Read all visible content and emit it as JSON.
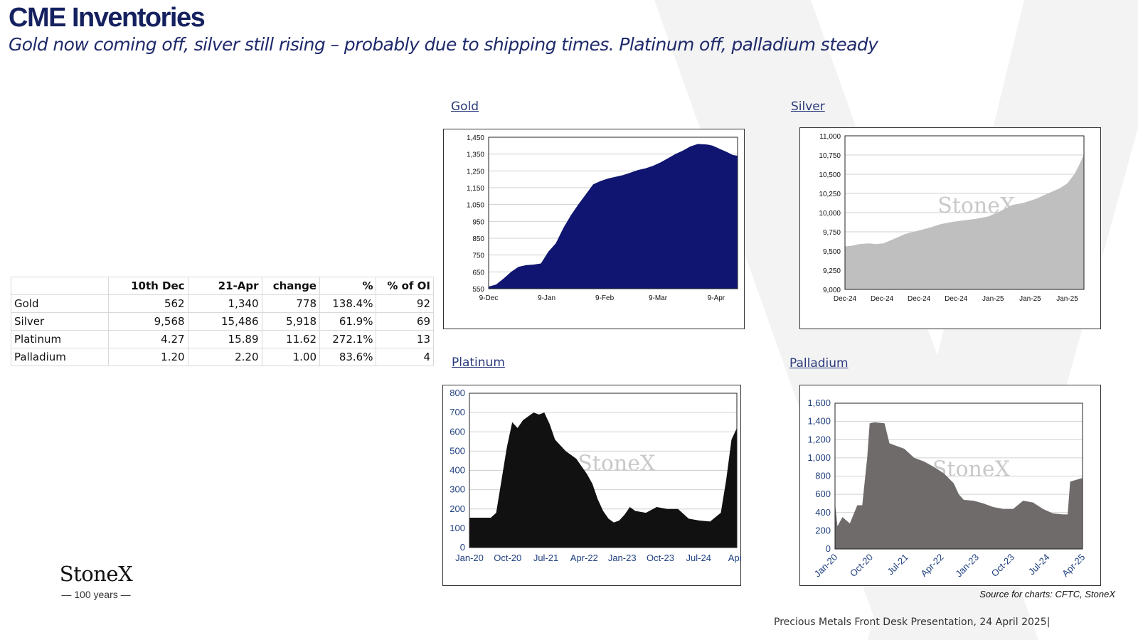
{
  "header": {
    "title": "CME Inventories",
    "subtitle": "Gold now coming off, silver still rising – probably due to shipping times.  Platinum off, palladium steady"
  },
  "table": {
    "headers": [
      "",
      "10th Dec",
      "21-Apr",
      "change",
      "%",
      "% of OI"
    ],
    "rows": [
      [
        "Gold",
        "562",
        "1,340",
        "778",
        "138.4%",
        "92"
      ],
      [
        "Silver",
        "9,568",
        "15,486",
        "5,918",
        "61.9%",
        "69"
      ],
      [
        "Platinum",
        "4.27",
        "15.89",
        "11.62",
        "272.1%",
        "13"
      ],
      [
        "Palladium",
        "1.20",
        "2.20",
        "1.00",
        "83.6%",
        "4"
      ]
    ]
  },
  "charts_labels": {
    "gold": "Gold",
    "silver": "Silver",
    "platinum": "Platinum",
    "palladium": "Palladium"
  },
  "chart_data": [
    {
      "type": "area",
      "title": "Gold",
      "fill": "#0f1570",
      "ylim": [
        550,
        1450
      ],
      "yticks": [
        550,
        650,
        750,
        850,
        950,
        1050,
        1150,
        1250,
        1350,
        1450
      ],
      "xticks": [
        "9-Dec",
        "9-Jan",
        "9-Feb",
        "9-Mar",
        "9-Apr"
      ],
      "xtick_at": [
        0,
        0.233,
        0.466,
        0.68,
        0.914
      ],
      "watermark": "StoneX",
      "x": [
        0,
        0.03,
        0.06,
        0.09,
        0.12,
        0.15,
        0.18,
        0.21,
        0.24,
        0.27,
        0.3,
        0.33,
        0.36,
        0.39,
        0.42,
        0.45,
        0.48,
        0.51,
        0.54,
        0.57,
        0.6,
        0.63,
        0.66,
        0.69,
        0.72,
        0.75,
        0.78,
        0.81,
        0.84,
        0.87,
        0.885,
        0.9,
        0.93,
        0.96,
        0.98,
        1.0
      ],
      "values": [
        562,
        575,
        610,
        650,
        680,
        690,
        693,
        700,
        770,
        820,
        910,
        985,
        1050,
        1110,
        1170,
        1190,
        1205,
        1215,
        1225,
        1240,
        1255,
        1265,
        1280,
        1300,
        1325,
        1350,
        1370,
        1395,
        1410,
        1408,
        1405,
        1400,
        1380,
        1360,
        1345,
        1340
      ]
    },
    {
      "type": "area",
      "title": "Silver",
      "fill": "#bfbfbf",
      "ylim": [
        9000,
        11000
      ],
      "yticks": [
        9000,
        9250,
        9500,
        9750,
        10000,
        10250,
        10500,
        10750,
        11000
      ],
      "xticks": [
        "Dec-24",
        "Dec-24",
        "Dec-24",
        "Dec-24",
        "Jan-25",
        "Jan-25",
        "Jan-25"
      ],
      "xtick_at": [
        0,
        0.155,
        0.31,
        0.465,
        0.62,
        0.775,
        0.93
      ],
      "watermark": "StoneX",
      "x": [
        0,
        0.03,
        0.06,
        0.1,
        0.13,
        0.16,
        0.2,
        0.25,
        0.3,
        0.35,
        0.4,
        0.45,
        0.5,
        0.55,
        0.6,
        0.65,
        0.7,
        0.75,
        0.8,
        0.85,
        0.9,
        0.93,
        0.96,
        0.98,
        1.0
      ],
      "values": [
        9560,
        9570,
        9590,
        9600,
        9590,
        9600,
        9650,
        9720,
        9760,
        9800,
        9850,
        9880,
        9900,
        9920,
        9950,
        10020,
        10100,
        10130,
        10180,
        10250,
        10320,
        10380,
        10500,
        10620,
        10760
      ]
    },
    {
      "type": "area",
      "title": "Platinum",
      "fill": "#111111",
      "ylim": [
        0,
        800
      ],
      "yticks": [
        0,
        100,
        200,
        300,
        400,
        500,
        600,
        700,
        800
      ],
      "xticks": [
        "Jan-20",
        "Oct-20",
        "Jul-21",
        "Apr-22",
        "Jan-23",
        "Oct-23",
        "Jul-24",
        "Apr-"
      ],
      "xtick_at": [
        0,
        0.143,
        0.286,
        0.429,
        0.571,
        0.714,
        0.857,
        1.0
      ],
      "watermark": "StoneX",
      "x": [
        0,
        0.04,
        0.08,
        0.1,
        0.12,
        0.14,
        0.16,
        0.18,
        0.2,
        0.22,
        0.24,
        0.26,
        0.28,
        0.3,
        0.32,
        0.34,
        0.36,
        0.38,
        0.4,
        0.42,
        0.44,
        0.46,
        0.48,
        0.5,
        0.52,
        0.54,
        0.56,
        0.58,
        0.6,
        0.62,
        0.66,
        0.7,
        0.74,
        0.78,
        0.82,
        0.86,
        0.9,
        0.94,
        0.96,
        0.98,
        1.0
      ],
      "values": [
        155,
        155,
        155,
        180,
        350,
        520,
        650,
        620,
        660,
        680,
        700,
        690,
        700,
        640,
        560,
        530,
        500,
        480,
        460,
        420,
        380,
        330,
        250,
        190,
        150,
        130,
        140,
        170,
        210,
        190,
        180,
        210,
        200,
        200,
        150,
        140,
        135,
        180,
        350,
        560,
        620
      ]
    },
    {
      "type": "area",
      "title": "Palladium",
      "fill": "#706b6b",
      "ylim": [
        0,
        1600
      ],
      "yticks": [
        0,
        200,
        400,
        600,
        800,
        1000,
        1200,
        1400,
        1600
      ],
      "xticks": [
        "Jan-20",
        "Oct-20",
        "Jul-21",
        "Apr-22",
        "Jan-23",
        "Oct-23",
        "Jul-24",
        "Apr-25"
      ],
      "xtick_at": [
        0,
        0.143,
        0.286,
        0.429,
        0.571,
        0.714,
        0.857,
        1.0
      ],
      "watermark": "StoneX",
      "x": [
        0,
        0.01,
        0.03,
        0.06,
        0.09,
        0.11,
        0.13,
        0.14,
        0.16,
        0.2,
        0.22,
        0.24,
        0.28,
        0.32,
        0.36,
        0.4,
        0.44,
        0.48,
        0.5,
        0.52,
        0.56,
        0.6,
        0.64,
        0.68,
        0.72,
        0.76,
        0.8,
        0.84,
        0.88,
        0.92,
        0.94,
        0.95,
        1.0
      ],
      "values": [
        500,
        250,
        350,
        280,
        480,
        480,
        1000,
        1380,
        1390,
        1380,
        1160,
        1140,
        1100,
        1000,
        960,
        900,
        830,
        720,
        600,
        540,
        530,
        500,
        460,
        440,
        440,
        530,
        510,
        440,
        390,
        380,
        380,
        740,
        780
      ]
    }
  ],
  "branding": {
    "logo_word": "StoneX",
    "logo_tag": "— 100 years —"
  },
  "source_note": "Source for charts: CFTC, StoneX",
  "footer": "Precious Metals Front Desk Presentation, 24 April 2025|"
}
